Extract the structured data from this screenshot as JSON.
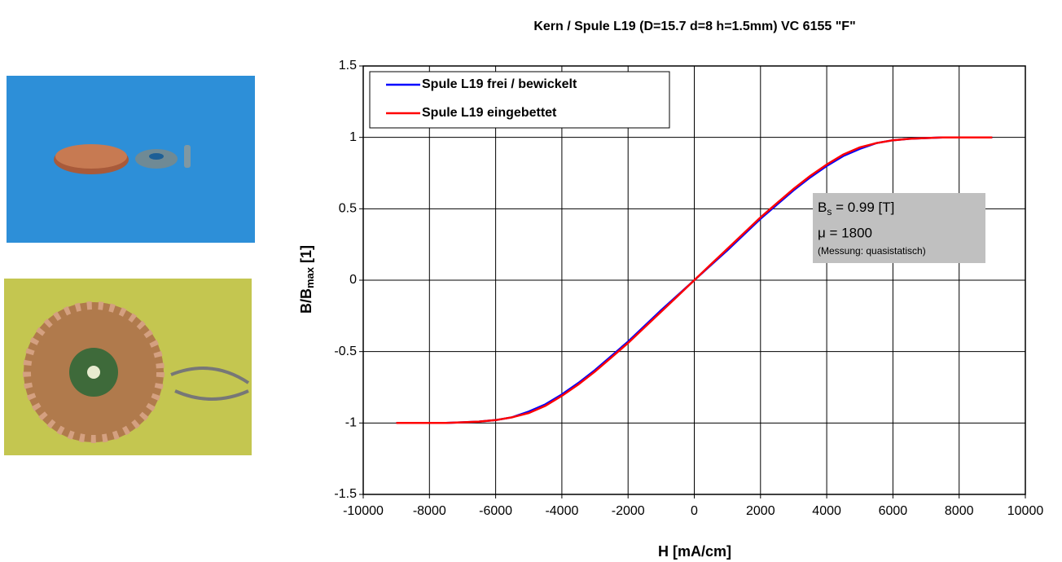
{
  "chart_data": {
    "type": "line",
    "title": "Kern / Spule L19 (D=15.7 d=8 h=1.5mm) VC 6155 \"F\"",
    "x_label": "H [mA/cm]",
    "y_label": {
      "main": "B/B",
      "sub": "max",
      "suffix": " [1]"
    },
    "x": [
      -9000,
      -8500,
      -8000,
      -7500,
      -7000,
      -6500,
      -6000,
      -5500,
      -5000,
      -4500,
      -4000,
      -3500,
      -3000,
      -2500,
      -2000,
      -1500,
      -1000,
      -500,
      0,
      500,
      1000,
      1500,
      2000,
      2500,
      3000,
      3500,
      4000,
      4500,
      5000,
      5500,
      6000,
      6500,
      7000,
      7500,
      8000,
      8500,
      9000
    ],
    "series": [
      {
        "name": "Spule L19 frei / bewickelt",
        "color": "#0000ff",
        "values": [
          -1,
          -1,
          -1,
          -1,
          -0.995,
          -0.99,
          -0.98,
          -0.96,
          -0.92,
          -0.87,
          -0.8,
          -0.72,
          -0.63,
          -0.53,
          -0.43,
          -0.32,
          -0.21,
          -0.105,
          0,
          0.105,
          0.21,
          0.32,
          0.43,
          0.53,
          0.63,
          0.72,
          0.8,
          0.87,
          0.92,
          0.96,
          0.98,
          0.99,
          0.995,
          1,
          1,
          1,
          1
        ]
      },
      {
        "name": "Spule L19 eingebettet",
        "color": "#ff0000",
        "values": [
          -1,
          -1,
          -1,
          -1,
          -0.995,
          -0.99,
          -0.98,
          -0.96,
          -0.93,
          -0.88,
          -0.81,
          -0.73,
          -0.64,
          -0.54,
          -0.44,
          -0.33,
          -0.22,
          -0.11,
          0,
          0.11,
          0.22,
          0.33,
          0.44,
          0.54,
          0.64,
          0.73,
          0.81,
          0.88,
          0.93,
          0.96,
          0.98,
          0.99,
          0.995,
          1,
          1,
          1,
          1
        ]
      }
    ],
    "xlim": [
      -10000,
      10000
    ],
    "xticks": [
      -10000,
      -8000,
      -6000,
      -4000,
      -2000,
      0,
      2000,
      4000,
      6000,
      8000,
      10000
    ],
    "ylim": [
      -1.5,
      1.5
    ],
    "yticks": [
      -1.5,
      -1,
      -0.5,
      0,
      0.5,
      1,
      1.5
    ],
    "grid": true,
    "legend": "upper-left",
    "annotation": {
      "line1": {
        "main": "B",
        "sub": "s",
        "suffix": " = 0.99 [T]"
      },
      "line2": "μ = 1800",
      "line3": "(Messung: quasistatisch)"
    }
  }
}
